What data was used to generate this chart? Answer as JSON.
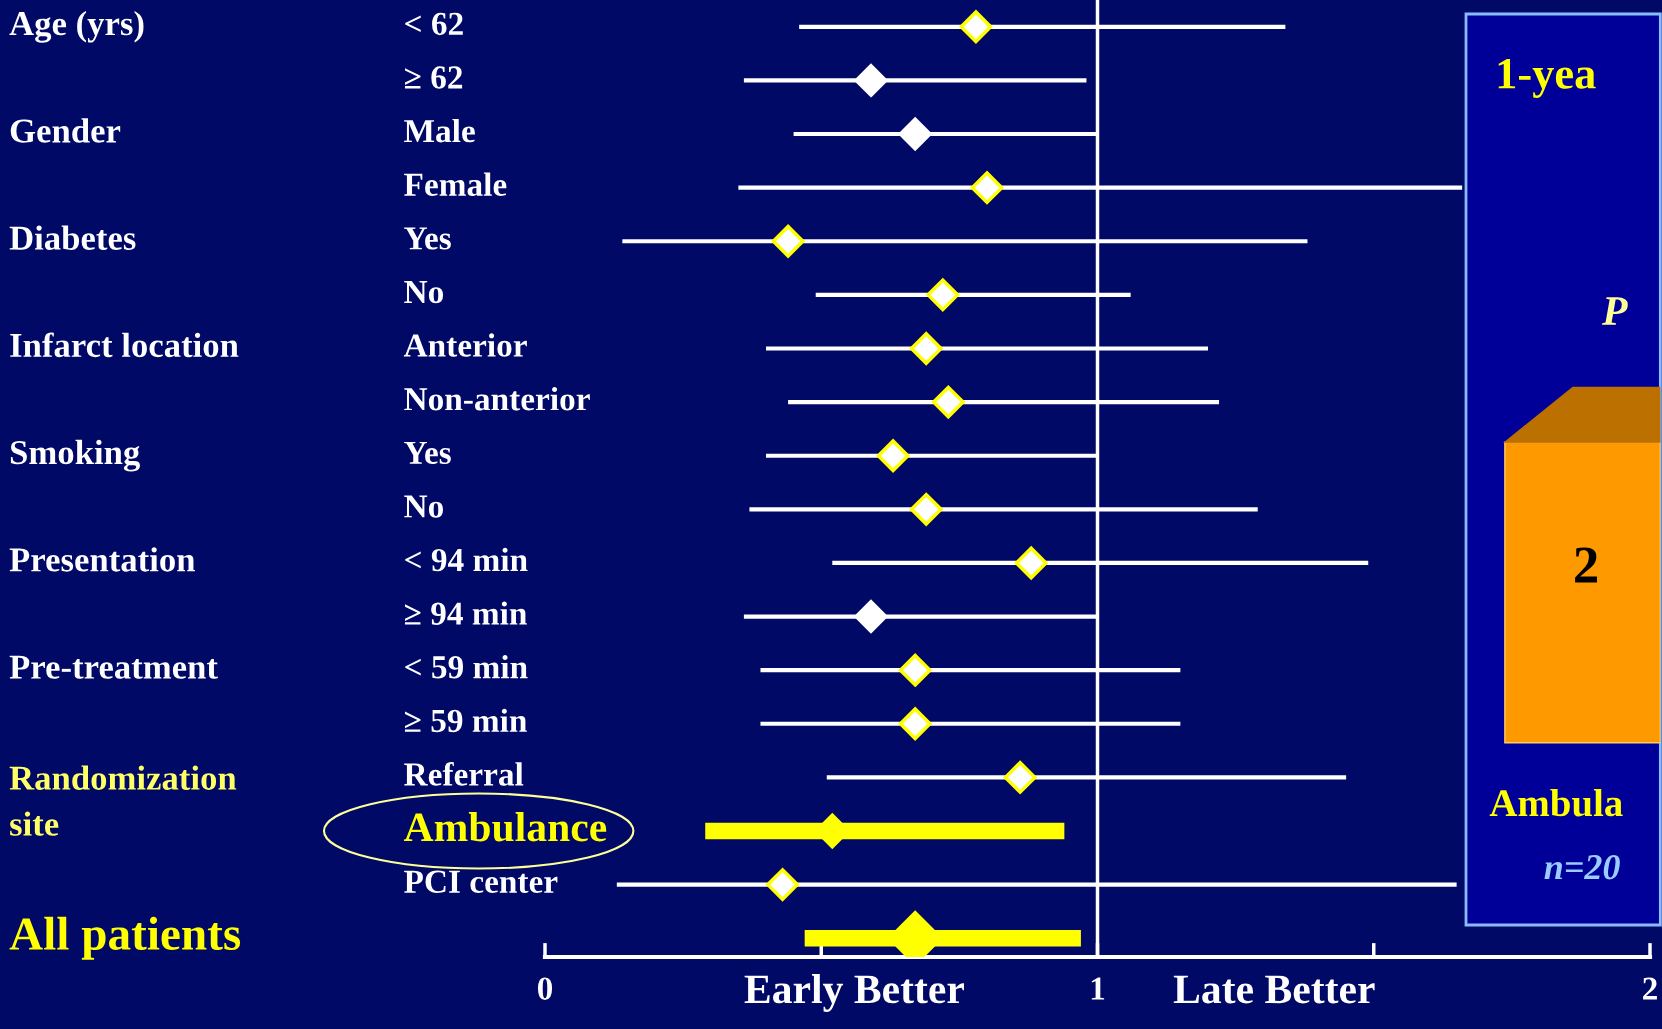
{
  "chart_data": [
    {
      "type": "scatter",
      "orientation": "horizontal",
      "marker": "diamond",
      "categories": [
        "< 62",
        "≥ 62",
        "Male",
        "Female",
        "Yes",
        "No",
        "Anterior",
        "Non-anterior",
        "Yes",
        "No",
        "< 94 min",
        "≥ 94 min",
        "< 59 min",
        "≥ 59 min",
        "Referral",
        "Ambulance",
        "PCI center",
        null
      ],
      "series": [
        {
          "color": "#ffffff",
          "colors": [
            "#ffff00",
            "#ffffff",
            "#ffffff",
            "#ffff00",
            "#ffff00",
            "#ffff00",
            "#ffff00",
            "#ffff00",
            "#ffff00",
            "#ffff00",
            "#ffff00",
            "#ffffff",
            "#ffff00",
            "#ffff00",
            "#ffff00",
            null,
            "#ffff00",
            null
          ],
          "values": [
            0.78,
            0.59,
            0.67,
            0.8,
            0.44,
            0.72,
            0.69,
            0.73,
            0.63,
            0.69,
            0.88,
            0.59,
            0.67,
            0.67,
            0.86,
            null,
            0.43,
            null
          ],
          "errors": [
            [
              0.46,
              1.34
            ],
            [
              0.36,
              0.98
            ],
            [
              0.45,
              1.0
            ],
            [
              0.35,
              1.66
            ],
            [
              0.14,
              1.38
            ],
            [
              0.49,
              1.06
            ],
            [
              0.4,
              1.2
            ],
            [
              0.44,
              1.22
            ],
            [
              0.4,
              1.0
            ],
            [
              0.37,
              1.29
            ],
            [
              0.52,
              1.49
            ],
            [
              0.36,
              1.0
            ],
            [
              0.39,
              1.15
            ],
            [
              0.39,
              1.15
            ],
            [
              0.51,
              1.45
            ],
            null,
            [
              0.13,
              1.65
            ],
            null
          ]
        },
        {
          "color": "#ffff00",
          "values": [
            null,
            null,
            null,
            null,
            null,
            null,
            null,
            null,
            null,
            null,
            null,
            null,
            null,
            null,
            null,
            0.52,
            null,
            0.67
          ],
          "errors": [
            null,
            null,
            null,
            null,
            null,
            null,
            null,
            null,
            null,
            null,
            null,
            null,
            null,
            null,
            null,
            [
              0.29,
              0.94
            ],
            null,
            [
              0.47,
              0.97
            ]
          ]
        }
      ],
      "xlim": [
        0,
        2
      ],
      "xticks": [
        0,
        {
          "value": 0.5,
          "label": null
        },
        1,
        {
          "value": 1.5,
          "label": null
        },
        2
      ],
      "ref_lines": [
        {
          "axis": "x",
          "value": 1,
          "color": "#ffffff"
        }
      ],
      "grid": false,
      "legend": false,
      "annotations": [
        "Age (yrs)",
        "Gender",
        "Diabetes",
        "Infarct location",
        "Smoking",
        "Presentation",
        "Pre-treatment",
        "Randomization site",
        "All patients",
        "Early Better",
        "Late Better"
      ]
    },
    {
      "type": "other",
      "annotations": [
        "1-yea",
        "P",
        "2",
        "Ambula",
        "n=20"
      ]
    }
  ]
}
